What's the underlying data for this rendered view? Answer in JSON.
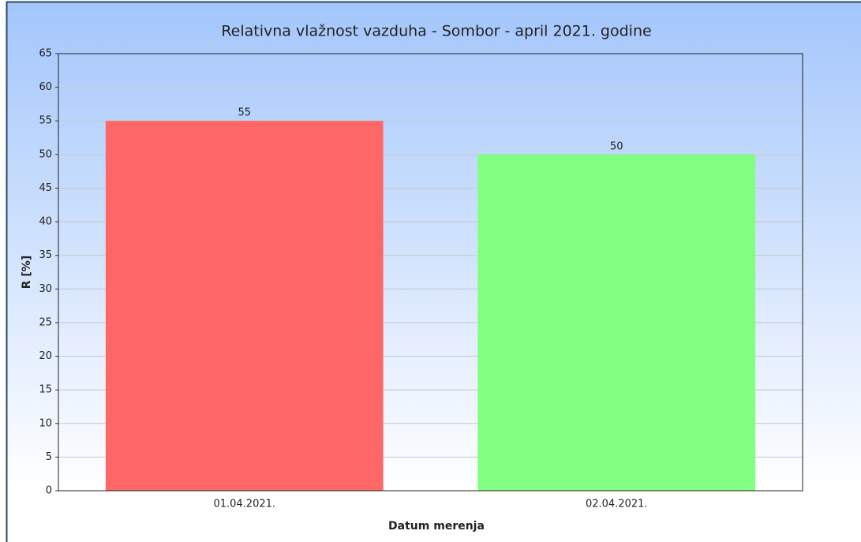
{
  "chart_data": {
    "type": "bar",
    "title": "Relativna vlažnost vazduha - Sombor - april 2021. godine",
    "x_label": "Datum merenja",
    "y_label": "R [%]",
    "categories": [
      "01.04.2021.",
      "02.04.2021."
    ],
    "values": [
      55,
      50
    ],
    "colors": [
      "#ff6666",
      "#80ff80"
    ],
    "ylim": [
      0,
      65
    ],
    "yticks": [
      0,
      5,
      10,
      15,
      20,
      25,
      30,
      35,
      40,
      45,
      50,
      55,
      60,
      65
    ],
    "grid": true
  }
}
